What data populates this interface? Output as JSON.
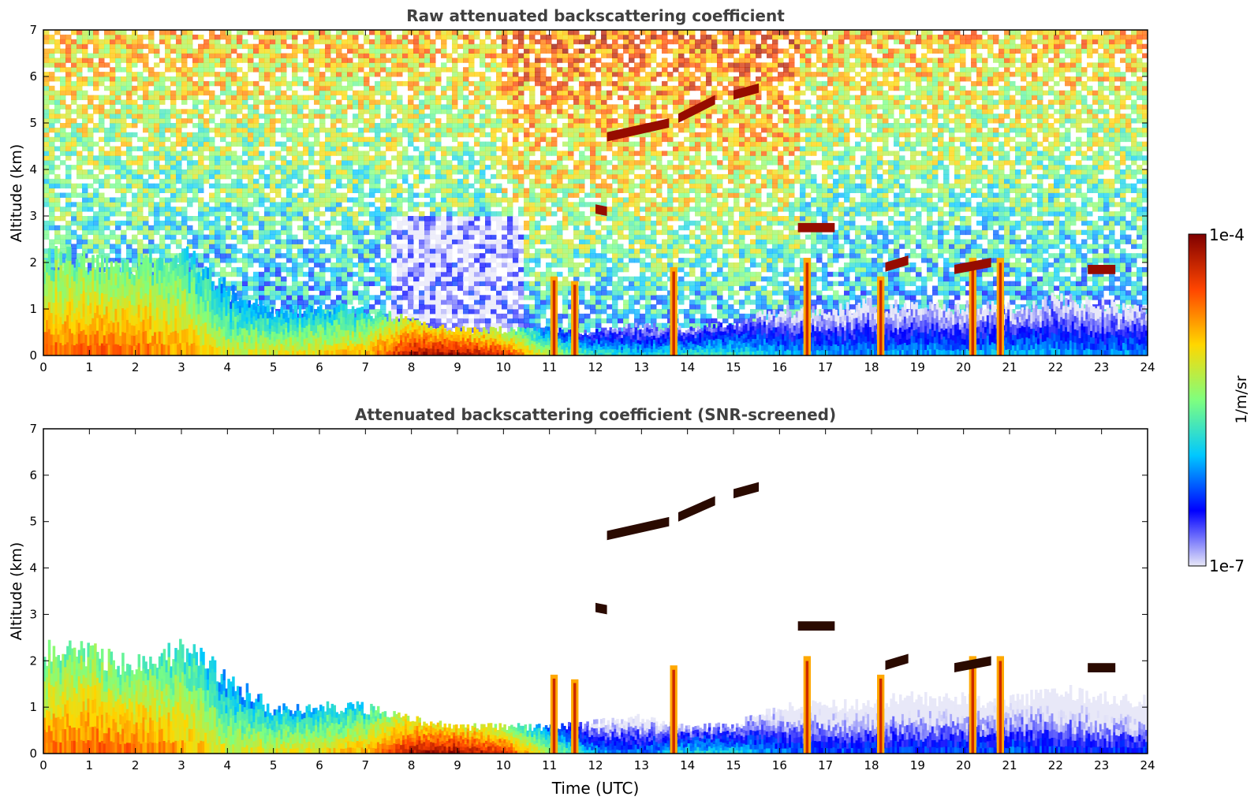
{
  "chart_data": [
    {
      "type": "heatmap",
      "title": "Raw attenuated backscattering coefficient",
      "xlabel": "",
      "ylabel": "Altitude (km)",
      "xlim": [
        0,
        24
      ],
      "ylim": [
        0,
        7
      ],
      "xticks": [
        0,
        1,
        2,
        3,
        4,
        5,
        6,
        7,
        8,
        9,
        10,
        11,
        12,
        13,
        14,
        15,
        16,
        17,
        18,
        19,
        20,
        21,
        22,
        23,
        24
      ],
      "yticks": [
        0,
        1,
        2,
        3,
        4,
        5,
        6,
        7
      ],
      "noise_above_signal": true,
      "boundary_layer": [
        {
          "t": 0,
          "top": 2.1,
          "level": 0.78
        },
        {
          "t": 1,
          "top": 2.0,
          "level": 0.8
        },
        {
          "t": 2,
          "top": 1.9,
          "level": 0.78
        },
        {
          "t": 3,
          "top": 2.2,
          "level": 0.72
        },
        {
          "t": 4,
          "top": 1.4,
          "level": 0.6
        },
        {
          "t": 5,
          "top": 0.9,
          "level": 0.62
        },
        {
          "t": 6,
          "top": 1.0,
          "level": 0.64
        },
        {
          "t": 7,
          "top": 0.95,
          "level": 0.7
        },
        {
          "t": 8,
          "top": 0.75,
          "level": 0.93
        },
        {
          "t": 9,
          "top": 0.55,
          "level": 0.95
        },
        {
          "t": 10,
          "top": 0.55,
          "level": 0.86
        },
        {
          "t": 11,
          "top": 0.55,
          "level": 0.55
        },
        {
          "t": 12,
          "top": 0.5,
          "level": 0.42
        },
        {
          "t": 13,
          "top": 0.65,
          "level": 0.35
        },
        {
          "t": 14,
          "top": 0.55,
          "level": 0.4
        },
        {
          "t": 15,
          "top": 0.7,
          "level": 0.4
        },
        {
          "t": 16,
          "top": 0.95,
          "level": 0.32
        },
        {
          "t": 17,
          "top": 0.95,
          "level": 0.3
        },
        {
          "t": 18,
          "top": 1.1,
          "level": 0.28
        },
        {
          "t": 19,
          "top": 1.0,
          "level": 0.3
        },
        {
          "t": 20,
          "top": 1.05,
          "level": 0.3
        },
        {
          "t": 21,
          "top": 1.0,
          "level": 0.32
        },
        {
          "t": 22,
          "top": 1.2,
          "level": 0.3
        },
        {
          "t": 23,
          "top": 1.1,
          "level": 0.28
        },
        {
          "t": 24,
          "top": 1.0,
          "level": 0.3
        }
      ],
      "cloud_layers": [
        {
          "t_start": 12.25,
          "t_end": 13.6,
          "alt_start": 4.7,
          "alt_end": 5.0
        },
        {
          "t_start": 13.8,
          "t_end": 14.6,
          "alt_start": 5.1,
          "alt_end": 5.5
        },
        {
          "t_start": 15.0,
          "t_end": 15.55,
          "alt_start": 5.6,
          "alt_end": 5.75
        },
        {
          "t_start": 12.0,
          "t_end": 12.25,
          "alt_start": 3.15,
          "alt_end": 3.1
        },
        {
          "t_start": 16.4,
          "t_end": 17.2,
          "alt_start": 2.75,
          "alt_end": 2.75
        },
        {
          "t_start": 18.3,
          "t_end": 18.8,
          "alt_start": 1.9,
          "alt_end": 2.05
        },
        {
          "t_start": 19.8,
          "t_end": 20.6,
          "alt_start": 1.85,
          "alt_end": 2.0
        },
        {
          "t_start": 22.7,
          "t_end": 23.3,
          "alt_start": 1.85,
          "alt_end": 1.85
        }
      ],
      "convective_plumes": [
        {
          "t": 11.1,
          "top": 1.7
        },
        {
          "t": 11.55,
          "top": 1.6
        },
        {
          "t": 13.7,
          "top": 1.9
        },
        {
          "t": 16.6,
          "top": 2.1
        },
        {
          "t": 18.2,
          "top": 1.7
        },
        {
          "t": 20.2,
          "top": 2.1
        },
        {
          "t": 20.8,
          "top": 2.1
        }
      ]
    },
    {
      "type": "heatmap",
      "title": "Attenuated backscattering coefficient (SNR-screened)",
      "xlabel": "Time (UTC)",
      "ylabel": "Altitude (km)",
      "xlim": [
        0,
        24
      ],
      "ylim": [
        0,
        7
      ],
      "xticks": [
        0,
        1,
        2,
        3,
        4,
        5,
        6,
        7,
        8,
        9,
        10,
        11,
        12,
        13,
        14,
        15,
        16,
        17,
        18,
        19,
        20,
        21,
        22,
        23,
        24
      ],
      "yticks": [
        0,
        1,
        2,
        3,
        4,
        5,
        6,
        7
      ],
      "noise_above_signal": false,
      "boundary_layer": [
        {
          "t": 0,
          "top": 2.2,
          "level": 0.78
        },
        {
          "t": 1,
          "top": 2.1,
          "level": 0.8
        },
        {
          "t": 2,
          "top": 1.9,
          "level": 0.78
        },
        {
          "t": 3,
          "top": 2.3,
          "level": 0.72
        },
        {
          "t": 4,
          "top": 1.6,
          "level": 0.6
        },
        {
          "t": 5,
          "top": 0.95,
          "level": 0.62
        },
        {
          "t": 6,
          "top": 1.0,
          "level": 0.64
        },
        {
          "t": 7,
          "top": 1.0,
          "level": 0.7
        },
        {
          "t": 8,
          "top": 0.75,
          "level": 0.93
        },
        {
          "t": 9,
          "top": 0.55,
          "level": 0.95
        },
        {
          "t": 10,
          "top": 0.6,
          "level": 0.86
        },
        {
          "t": 11,
          "top": 0.55,
          "level": 0.55
        },
        {
          "t": 12,
          "top": 0.65,
          "level": 0.3
        },
        {
          "t": 13,
          "top": 0.75,
          "level": 0.26
        },
        {
          "t": 14,
          "top": 0.55,
          "level": 0.36
        },
        {
          "t": 15,
          "top": 0.6,
          "level": 0.36
        },
        {
          "t": 16,
          "top": 1.0,
          "level": 0.26
        },
        {
          "t": 17,
          "top": 1.0,
          "level": 0.22
        },
        {
          "t": 18,
          "top": 1.1,
          "level": 0.22
        },
        {
          "t": 19,
          "top": 1.2,
          "level": 0.2
        },
        {
          "t": 20,
          "top": 1.15,
          "level": 0.22
        },
        {
          "t": 21,
          "top": 1.1,
          "level": 0.24
        },
        {
          "t": 22,
          "top": 1.35,
          "level": 0.2
        },
        {
          "t": 23,
          "top": 1.2,
          "level": 0.18
        },
        {
          "t": 24,
          "top": 1.1,
          "level": 0.2
        }
      ],
      "cloud_layers": [
        {
          "t_start": 12.25,
          "t_end": 13.6,
          "alt_start": 4.7,
          "alt_end": 5.0
        },
        {
          "t_start": 13.8,
          "t_end": 14.6,
          "alt_start": 5.1,
          "alt_end": 5.45
        },
        {
          "t_start": 15.0,
          "t_end": 15.55,
          "alt_start": 5.6,
          "alt_end": 5.75
        },
        {
          "t_start": 12.0,
          "t_end": 12.25,
          "alt_start": 3.15,
          "alt_end": 3.1
        },
        {
          "t_start": 16.4,
          "t_end": 17.2,
          "alt_start": 2.75,
          "alt_end": 2.75
        },
        {
          "t_start": 18.3,
          "t_end": 18.8,
          "alt_start": 1.9,
          "alt_end": 2.05
        },
        {
          "t_start": 19.8,
          "t_end": 20.6,
          "alt_start": 1.85,
          "alt_end": 2.0
        },
        {
          "t_start": 22.7,
          "t_end": 23.3,
          "alt_start": 1.85,
          "alt_end": 1.85
        }
      ],
      "convective_plumes": [
        {
          "t": 11.1,
          "top": 1.7
        },
        {
          "t": 11.55,
          "top": 1.6
        },
        {
          "t": 13.7,
          "top": 1.9
        },
        {
          "t": 16.6,
          "top": 2.1
        },
        {
          "t": 18.2,
          "top": 1.7
        },
        {
          "t": 20.2,
          "top": 2.1
        },
        {
          "t": 20.8,
          "top": 2.1
        }
      ]
    }
  ],
  "colorbar": {
    "max_label": "1e-4",
    "min_label": "1e-7",
    "unit_label": "1/m/sr",
    "stops": [
      "#e8e8f8",
      "#0000ff",
      "#00c8ff",
      "#7fff7f",
      "#ffd700",
      "#ff4500",
      "#7f0000"
    ]
  }
}
